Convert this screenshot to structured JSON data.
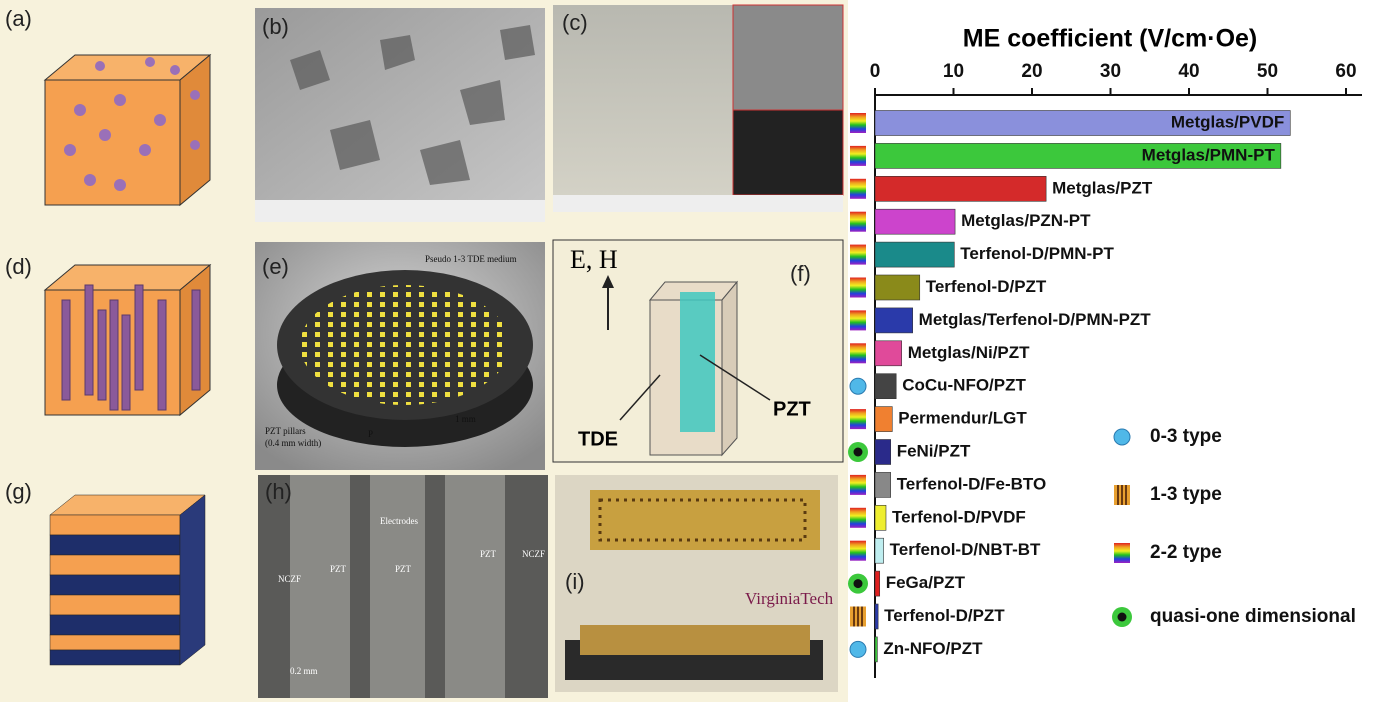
{
  "panels": [
    {
      "label": "(a)"
    },
    {
      "label": "(b)"
    },
    {
      "label": "(c)"
    },
    {
      "label": "(d)"
    },
    {
      "label": "(e)",
      "texts": [
        "Pseudo 1-3 TDE medium",
        "PZT pillars",
        "(0.4 mm width)",
        "1 mm",
        "P"
      ]
    },
    {
      "label": "(f)",
      "texts": [
        "E, H",
        "TDE",
        "PZT"
      ]
    },
    {
      "label": "(g)"
    },
    {
      "label": "(h)",
      "texts": [
        "Electrodes",
        "NCZF",
        "PZT",
        "PZT",
        "PZT",
        "NCZF",
        "0.2 mm"
      ]
    },
    {
      "label": "(i)",
      "texts": [
        "VirginiaTech"
      ]
    }
  ],
  "chart_data": {
    "type": "bar",
    "orientation": "horizontal",
    "title": "ME coefficient (V/cm·Oe)",
    "categories": [
      "Metglas/PVDF",
      "Metglas/PMN-PT",
      "Metglas/PZT",
      "Metglas/PZN-PT",
      "Terfenol-D/PMN-PT",
      "Terfenol-D/PZT",
      "Metglas/Terfenol-D/PMN-PZT",
      "Metglas/Ni/PZT",
      "CoCu-NFO/PZT",
      "Permendur/LGT",
      "FeNi/PZT",
      "Terfenol-D/Fe-BTO",
      "Terfenol-D/PVDF",
      "Terfenol-D/NBT-BT",
      "FeGa/PZT",
      "Terfenol-D/PZT",
      "Zn-NFO/PZT"
    ],
    "values": [
      52.9,
      51.7,
      21.8,
      10.2,
      10.1,
      5.7,
      4.8,
      3.4,
      2.7,
      2.2,
      2.0,
      2.0,
      1.4,
      1.1,
      0.6,
      0.4,
      0.3
    ],
    "colors": [
      "#8a90dc",
      "#3cc83c",
      "#d42a2a",
      "#cc44cc",
      "#1a8a8a",
      "#8a8a1a",
      "#2a3aaa",
      "#e04a9a",
      "#444444",
      "#f08030",
      "#2a2a8a",
      "#888888",
      "#eeee30",
      "#bfeef0",
      "#e02020",
      "#2a3aaa",
      "#3cc83c"
    ],
    "category_types": [
      2,
      2,
      2,
      2,
      2,
      2,
      2,
      2,
      0,
      2,
      3,
      2,
      2,
      2,
      3,
      1,
      0
    ],
    "legend": [
      {
        "label": "0-3 type"
      },
      {
        "label": "1-3 type"
      },
      {
        "label": "2-2 type"
      },
      {
        "label": "quasi-one dimensional"
      }
    ],
    "xlim": [
      0,
      60
    ],
    "xticks": [
      0,
      10,
      20,
      30,
      40,
      50,
      60
    ]
  }
}
